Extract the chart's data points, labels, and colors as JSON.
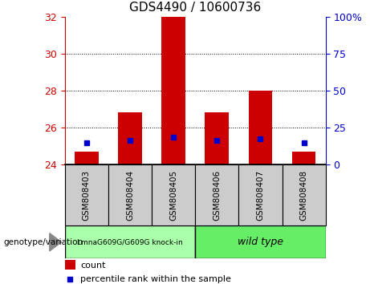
{
  "title": "GDS4490 / 10600736",
  "samples": [
    "GSM808403",
    "GSM808404",
    "GSM808405",
    "GSM808406",
    "GSM808407",
    "GSM808408"
  ],
  "bar_bottoms": [
    24,
    24,
    24,
    24,
    24,
    24
  ],
  "bar_tops": [
    24.7,
    26.85,
    32.0,
    26.85,
    28.0,
    24.7
  ],
  "blue_markers": [
    25.2,
    25.3,
    25.5,
    25.3,
    25.4,
    25.2
  ],
  "ylim": [
    24,
    32
  ],
  "yticks_left": [
    24,
    26,
    28,
    30,
    32
  ],
  "yticks_right_labels": [
    "0",
    "25",
    "50",
    "75",
    "100%"
  ],
  "yticks_right_positions": [
    24,
    26,
    28,
    30,
    32
  ],
  "grid_lines": [
    26,
    28,
    30
  ],
  "bar_color": "#cc0000",
  "blue_color": "#0000cc",
  "left_axis_color": "#cc0000",
  "right_axis_color": "#0000cc",
  "group1_label": "LmnaG609G/G609G knock-in",
  "group2_label": "wild type",
  "group1_color": "#aaffaa",
  "group2_color": "#66ee66",
  "sample_box_color": "#cccccc",
  "legend_count_label": "count",
  "legend_pct_label": "percentile rank within the sample",
  "genotype_label": "genotype/variation",
  "bar_width": 0.55
}
